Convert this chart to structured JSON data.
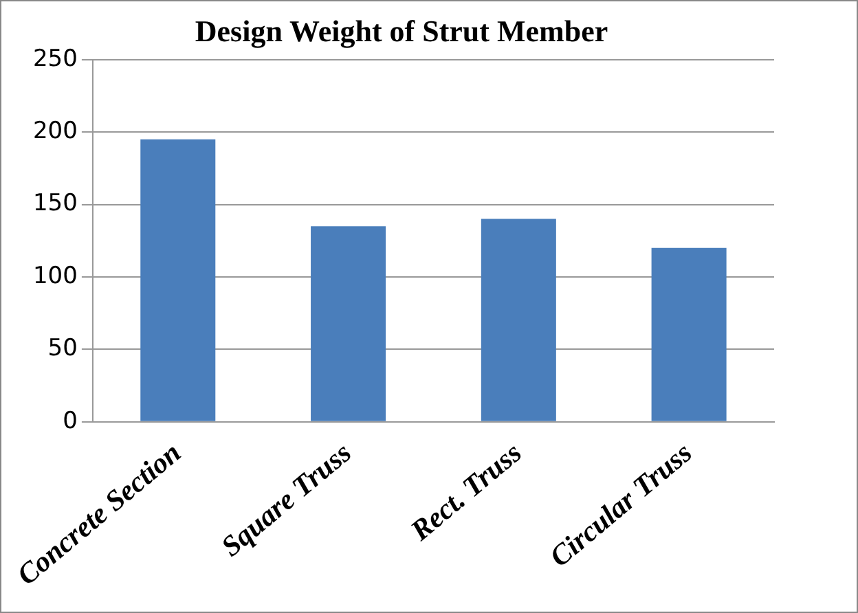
{
  "chart_data": {
    "type": "bar",
    "title": "Design Weight of Strut Member",
    "categories": [
      "Concrete Section",
      "Square Truss",
      "Rect. Truss",
      "Circular Truss"
    ],
    "values": [
      195,
      135,
      140,
      120
    ],
    "color": "#4a7ebb",
    "ylim": [
      0,
      250
    ],
    "yticks": [
      0,
      50,
      100,
      150,
      200,
      250
    ],
    "grid": "y"
  }
}
